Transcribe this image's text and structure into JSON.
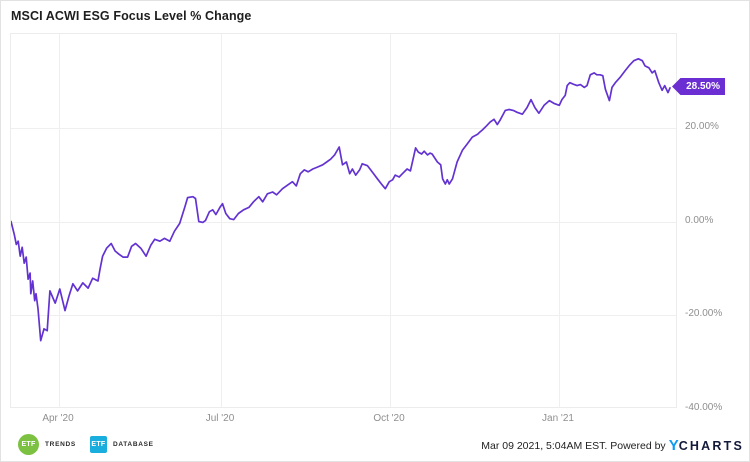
{
  "title": "MSCI ACWI ESG Focus Level % Change",
  "badge": {
    "label": "28.50%"
  },
  "y_axis": {
    "min": -40,
    "max": 40,
    "ticks": [
      {
        "value": 20,
        "label": "20.00%"
      },
      {
        "value": 0,
        "label": "0.00%"
      },
      {
        "value": -20,
        "label": "-20.00%"
      },
      {
        "value": -40,
        "label": "-40.00%"
      }
    ]
  },
  "x_axis": {
    "ticks": [
      {
        "label": "Apr '20",
        "t": 0.072
      },
      {
        "label": "Jul '20",
        "t": 0.315
      },
      {
        "label": "Oct '20",
        "t": 0.568
      },
      {
        "label": "Jan '21",
        "t": 0.822
      }
    ]
  },
  "footer": {
    "logos": [
      {
        "name": "ETF Trends",
        "icon_text": "ETF",
        "label": "TRENDS",
        "color": "#7cc142",
        "shape": "circle"
      },
      {
        "name": "ETF Database",
        "icon_text": "ETF",
        "label": "DATABASE",
        "color": "#1aaede",
        "shape": "square"
      }
    ],
    "timestamp": "Mar 09 2021, 5:04AM EST. Powered by",
    "brand_prefix": "Y",
    "brand_rest": "CHARTS"
  },
  "colors": {
    "line": "#6333d1",
    "badge_bg": "#6b2ed3",
    "grid": "#efefef",
    "axis_text": "#8f8f8f",
    "title_text": "#1e1e1e",
    "brand_blue": "#0d9bf2",
    "brand_dark": "#131a3a"
  },
  "chart_data": {
    "type": "line",
    "title": "MSCI ACWI ESG Focus Level % Change",
    "series_name": "MSCI ACWI ESG Focus Level",
    "y_unit": "percent change",
    "ylim": [
      -40,
      40
    ],
    "x_range": [
      "Mar 09 2020",
      "Mar 09 2021"
    ],
    "x_ticks": [
      "Apr '20",
      "Jul '20",
      "Oct '20",
      "Jan '21"
    ],
    "last_value": 28.5,
    "min_value": -25.4,
    "max_value": 34.7,
    "legend": "none",
    "grid": "on",
    "points": [
      [
        0.0,
        0.0
      ],
      [
        0.005,
        -2.8
      ],
      [
        0.008,
        -4.9
      ],
      [
        0.011,
        -4.2
      ],
      [
        0.014,
        -7.4
      ],
      [
        0.017,
        -5.5
      ],
      [
        0.02,
        -8.9
      ],
      [
        0.023,
        -7.6
      ],
      [
        0.026,
        -12.3
      ],
      [
        0.029,
        -11.0
      ],
      [
        0.03,
        -15.4
      ],
      [
        0.033,
        -12.7
      ],
      [
        0.036,
        -16.9
      ],
      [
        0.038,
        -15.4
      ],
      [
        0.041,
        -18.6
      ],
      [
        0.045,
        -25.4
      ],
      [
        0.05,
        -22.9
      ],
      [
        0.055,
        -23.3
      ],
      [
        0.059,
        -14.8
      ],
      [
        0.067,
        -17.4
      ],
      [
        0.074,
        -14.4
      ],
      [
        0.082,
        -19.0
      ],
      [
        0.088,
        -15.9
      ],
      [
        0.094,
        -13.3
      ],
      [
        0.101,
        -14.8
      ],
      [
        0.109,
        -13.1
      ],
      [
        0.117,
        -14.2
      ],
      [
        0.124,
        -12.1
      ],
      [
        0.132,
        -12.7
      ],
      [
        0.135,
        -10.2
      ],
      [
        0.139,
        -7.4
      ],
      [
        0.145,
        -5.7
      ],
      [
        0.152,
        -4.7
      ],
      [
        0.158,
        -6.3
      ],
      [
        0.164,
        -7.0
      ],
      [
        0.17,
        -7.6
      ],
      [
        0.177,
        -7.6
      ],
      [
        0.183,
        -5.3
      ],
      [
        0.189,
        -4.7
      ],
      [
        0.197,
        -5.7
      ],
      [
        0.205,
        -7.4
      ],
      [
        0.212,
        -5.1
      ],
      [
        0.218,
        -3.8
      ],
      [
        0.226,
        -4.2
      ],
      [
        0.233,
        -3.6
      ],
      [
        0.241,
        -4.2
      ],
      [
        0.248,
        -2.1
      ],
      [
        0.256,
        -0.4
      ],
      [
        0.264,
        3.2
      ],
      [
        0.268,
        5.1
      ],
      [
        0.276,
        5.3
      ],
      [
        0.28,
        4.9
      ],
      [
        0.285,
        0.0
      ],
      [
        0.291,
        -0.2
      ],
      [
        0.295,
        0.2
      ],
      [
        0.301,
        2.1
      ],
      [
        0.306,
        2.5
      ],
      [
        0.311,
        1.5
      ],
      [
        0.317,
        3.0
      ],
      [
        0.321,
        3.8
      ],
      [
        0.326,
        1.7
      ],
      [
        0.332,
        0.6
      ],
      [
        0.338,
        0.4
      ],
      [
        0.345,
        1.7
      ],
      [
        0.353,
        2.5
      ],
      [
        0.361,
        3.0
      ],
      [
        0.368,
        4.2
      ],
      [
        0.376,
        5.3
      ],
      [
        0.382,
        4.2
      ],
      [
        0.389,
        5.9
      ],
      [
        0.397,
        6.3
      ],
      [
        0.403,
        5.7
      ],
      [
        0.412,
        7.0
      ],
      [
        0.42,
        7.8
      ],
      [
        0.427,
        8.5
      ],
      [
        0.433,
        7.6
      ],
      [
        0.439,
        10.2
      ],
      [
        0.445,
        11.0
      ],
      [
        0.451,
        10.6
      ],
      [
        0.458,
        11.2
      ],
      [
        0.465,
        11.6
      ],
      [
        0.473,
        12.1
      ],
      [
        0.479,
        12.7
      ],
      [
        0.485,
        13.3
      ],
      [
        0.491,
        14.2
      ],
      [
        0.498,
        15.9
      ],
      [
        0.503,
        12.1
      ],
      [
        0.509,
        12.7
      ],
      [
        0.514,
        10.2
      ],
      [
        0.518,
        11.2
      ],
      [
        0.523,
        9.9
      ],
      [
        0.529,
        11.0
      ],
      [
        0.533,
        12.3
      ],
      [
        0.541,
        11.9
      ],
      [
        0.548,
        10.6
      ],
      [
        0.556,
        9.1
      ],
      [
        0.562,
        8.0
      ],
      [
        0.568,
        7.0
      ],
      [
        0.574,
        8.5
      ],
      [
        0.579,
        8.9
      ],
      [
        0.583,
        9.9
      ],
      [
        0.589,
        9.5
      ],
      [
        0.594,
        10.2
      ],
      [
        0.601,
        11.2
      ],
      [
        0.606,
        10.8
      ],
      [
        0.611,
        13.8
      ],
      [
        0.614,
        15.7
      ],
      [
        0.618,
        14.8
      ],
      [
        0.623,
        14.4
      ],
      [
        0.627,
        15.0
      ],
      [
        0.632,
        14.2
      ],
      [
        0.636,
        14.6
      ],
      [
        0.639,
        14.4
      ],
      [
        0.647,
        12.7
      ],
      [
        0.652,
        12.1
      ],
      [
        0.655,
        9.1
      ],
      [
        0.659,
        8.0
      ],
      [
        0.662,
        8.9
      ],
      [
        0.665,
        8.0
      ],
      [
        0.67,
        9.1
      ],
      [
        0.677,
        12.7
      ],
      [
        0.685,
        15.2
      ],
      [
        0.692,
        16.5
      ],
      [
        0.7,
        18.0
      ],
      [
        0.708,
        18.6
      ],
      [
        0.711,
        19.0
      ],
      [
        0.715,
        19.5
      ],
      [
        0.721,
        20.3
      ],
      [
        0.727,
        21.2
      ],
      [
        0.733,
        21.8
      ],
      [
        0.738,
        20.7
      ],
      [
        0.742,
        21.6
      ],
      [
        0.75,
        23.7
      ],
      [
        0.756,
        23.9
      ],
      [
        0.762,
        23.7
      ],
      [
        0.768,
        23.3
      ],
      [
        0.776,
        22.9
      ],
      [
        0.783,
        24.3
      ],
      [
        0.789,
        26.0
      ],
      [
        0.795,
        24.3
      ],
      [
        0.801,
        23.1
      ],
      [
        0.809,
        24.8
      ],
      [
        0.817,
        25.8
      ],
      [
        0.824,
        25.2
      ],
      [
        0.832,
        24.8
      ],
      [
        0.836,
        26.0
      ],
      [
        0.841,
        26.9
      ],
      [
        0.844,
        29.0
      ],
      [
        0.848,
        29.6
      ],
      [
        0.855,
        29.2
      ],
      [
        0.859,
        29.0
      ],
      [
        0.864,
        29.2
      ],
      [
        0.87,
        28.6
      ],
      [
        0.874,
        29.0
      ],
      [
        0.879,
        31.3
      ],
      [
        0.885,
        31.7
      ],
      [
        0.889,
        31.3
      ],
      [
        0.894,
        31.3
      ],
      [
        0.898,
        31.1
      ],
      [
        0.902,
        28.2
      ],
      [
        0.908,
        25.8
      ],
      [
        0.912,
        28.6
      ],
      [
        0.917,
        29.6
      ],
      [
        0.924,
        30.7
      ],
      [
        0.932,
        32.2
      ],
      [
        0.939,
        33.4
      ],
      [
        0.945,
        34.3
      ],
      [
        0.952,
        34.7
      ],
      [
        0.958,
        34.3
      ],
      [
        0.962,
        33.2
      ],
      [
        0.968,
        32.8
      ],
      [
        0.973,
        31.7
      ],
      [
        0.977,
        32.2
      ],
      [
        0.983,
        29.6
      ],
      [
        0.988,
        28.0
      ],
      [
        0.992,
        29.0
      ],
      [
        0.997,
        27.5
      ],
      [
        1.0,
        28.5
      ]
    ]
  }
}
